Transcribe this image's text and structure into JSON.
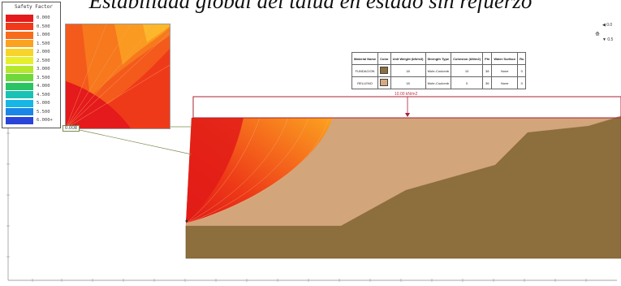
{
  "title": "Estabilidad global del talud en estado sin refuerzo",
  "legend": {
    "title": "Safety Factor",
    "items": [
      {
        "label": "0.000",
        "color": "#e41a1c"
      },
      {
        "label": "0.500",
        "color": "#f03a1a"
      },
      {
        "label": "1.000",
        "color": "#f76b1a"
      },
      {
        "label": "1.500",
        "color": "#fba21f"
      },
      {
        "label": "2.000",
        "color": "#f8d32a"
      },
      {
        "label": "2.500",
        "color": "#e6ef2b"
      },
      {
        "label": "3.000",
        "color": "#b5e82c"
      },
      {
        "label": "3.500",
        "color": "#6fd83a"
      },
      {
        "label": "4.000",
        "color": "#2bc463"
      },
      {
        "label": "4.500",
        "color": "#19c2b5"
      },
      {
        "label": "5.000",
        "color": "#16b7e6"
      },
      {
        "label": "5.500",
        "color": "#1a86e8"
      },
      {
        "label": "6.000+",
        "color": "#2a43d9"
      }
    ]
  },
  "min_fs_label": "0.008",
  "load_label": "10.00 kN/m2",
  "compass": {
    "top": "0.0",
    "bottom": "0.5"
  },
  "materials": {
    "headers": [
      "Material Name",
      "Color",
      "Unit Weight (kN/m3)",
      "Strength Type",
      "Cohesion (kN/m2)",
      "Phi",
      "Water Surface",
      "Ru"
    ],
    "rows": [
      {
        "name": "FUNDACION",
        "color": "#8d6e3d",
        "unit_weight": "18",
        "strength": "Mohr-Coulomb",
        "cohesion": "10",
        "phi": "38",
        "water": "None",
        "ru": "0"
      },
      {
        "name": "RELLENO",
        "color": "#d7aa82",
        "unit_weight": "18",
        "strength": "Mohr-Coulomb",
        "cohesion": "0",
        "phi": "36",
        "water": "None",
        "ru": "0"
      }
    ]
  },
  "colors": {
    "foundation": "#8d6e3d",
    "fill": "#d2a57b",
    "frame": "#aa2033"
  }
}
